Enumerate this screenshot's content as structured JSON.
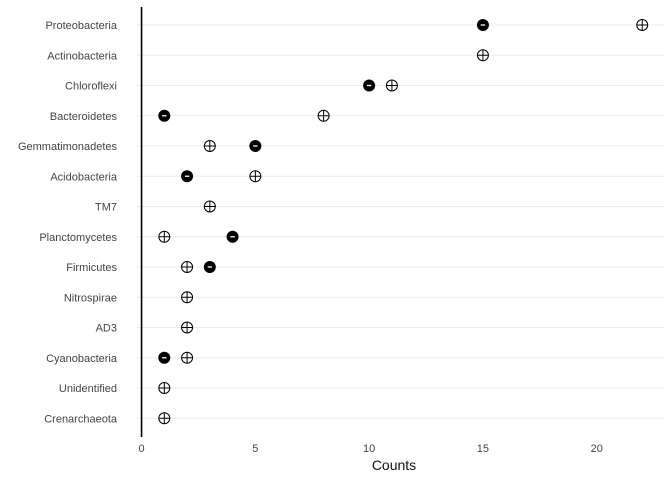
{
  "chart_data": {
    "type": "scatter",
    "title": "",
    "xlabel": "Counts",
    "ylabel": "",
    "xlim": [
      -0.2,
      23.0
    ],
    "xticks": [
      0,
      5,
      10,
      15,
      20
    ],
    "grid": "horizontal",
    "legend": "none",
    "categories": [
      "Proteobacteria",
      "Actinobacteria",
      "Chloroflexi",
      "Bacteroidetes",
      "Gemmatimonadetes",
      "Acidobacteria",
      "TM7",
      "Planctomycetes",
      "Firmicutes",
      "Nitrospirae",
      "AD3",
      "Cyanobacteria",
      "Unidentified",
      "Crenarchaeota"
    ],
    "series": [
      {
        "marker": "minus",
        "symbol": "-",
        "values": [
          15,
          null,
          10,
          1,
          5,
          2,
          null,
          4,
          3,
          null,
          null,
          1,
          null,
          null
        ]
      },
      {
        "marker": "plus",
        "symbol": "+",
        "values": [
          22,
          15,
          11,
          8,
          3,
          5,
          3,
          1,
          2,
          2,
          2,
          2,
          1,
          1
        ]
      }
    ]
  },
  "colors": {
    "minus_fill": "#000000",
    "plus_fill": "#ffffff",
    "grid": "#ebebeb",
    "zero_line": "#000000",
    "label": "#444444"
  }
}
